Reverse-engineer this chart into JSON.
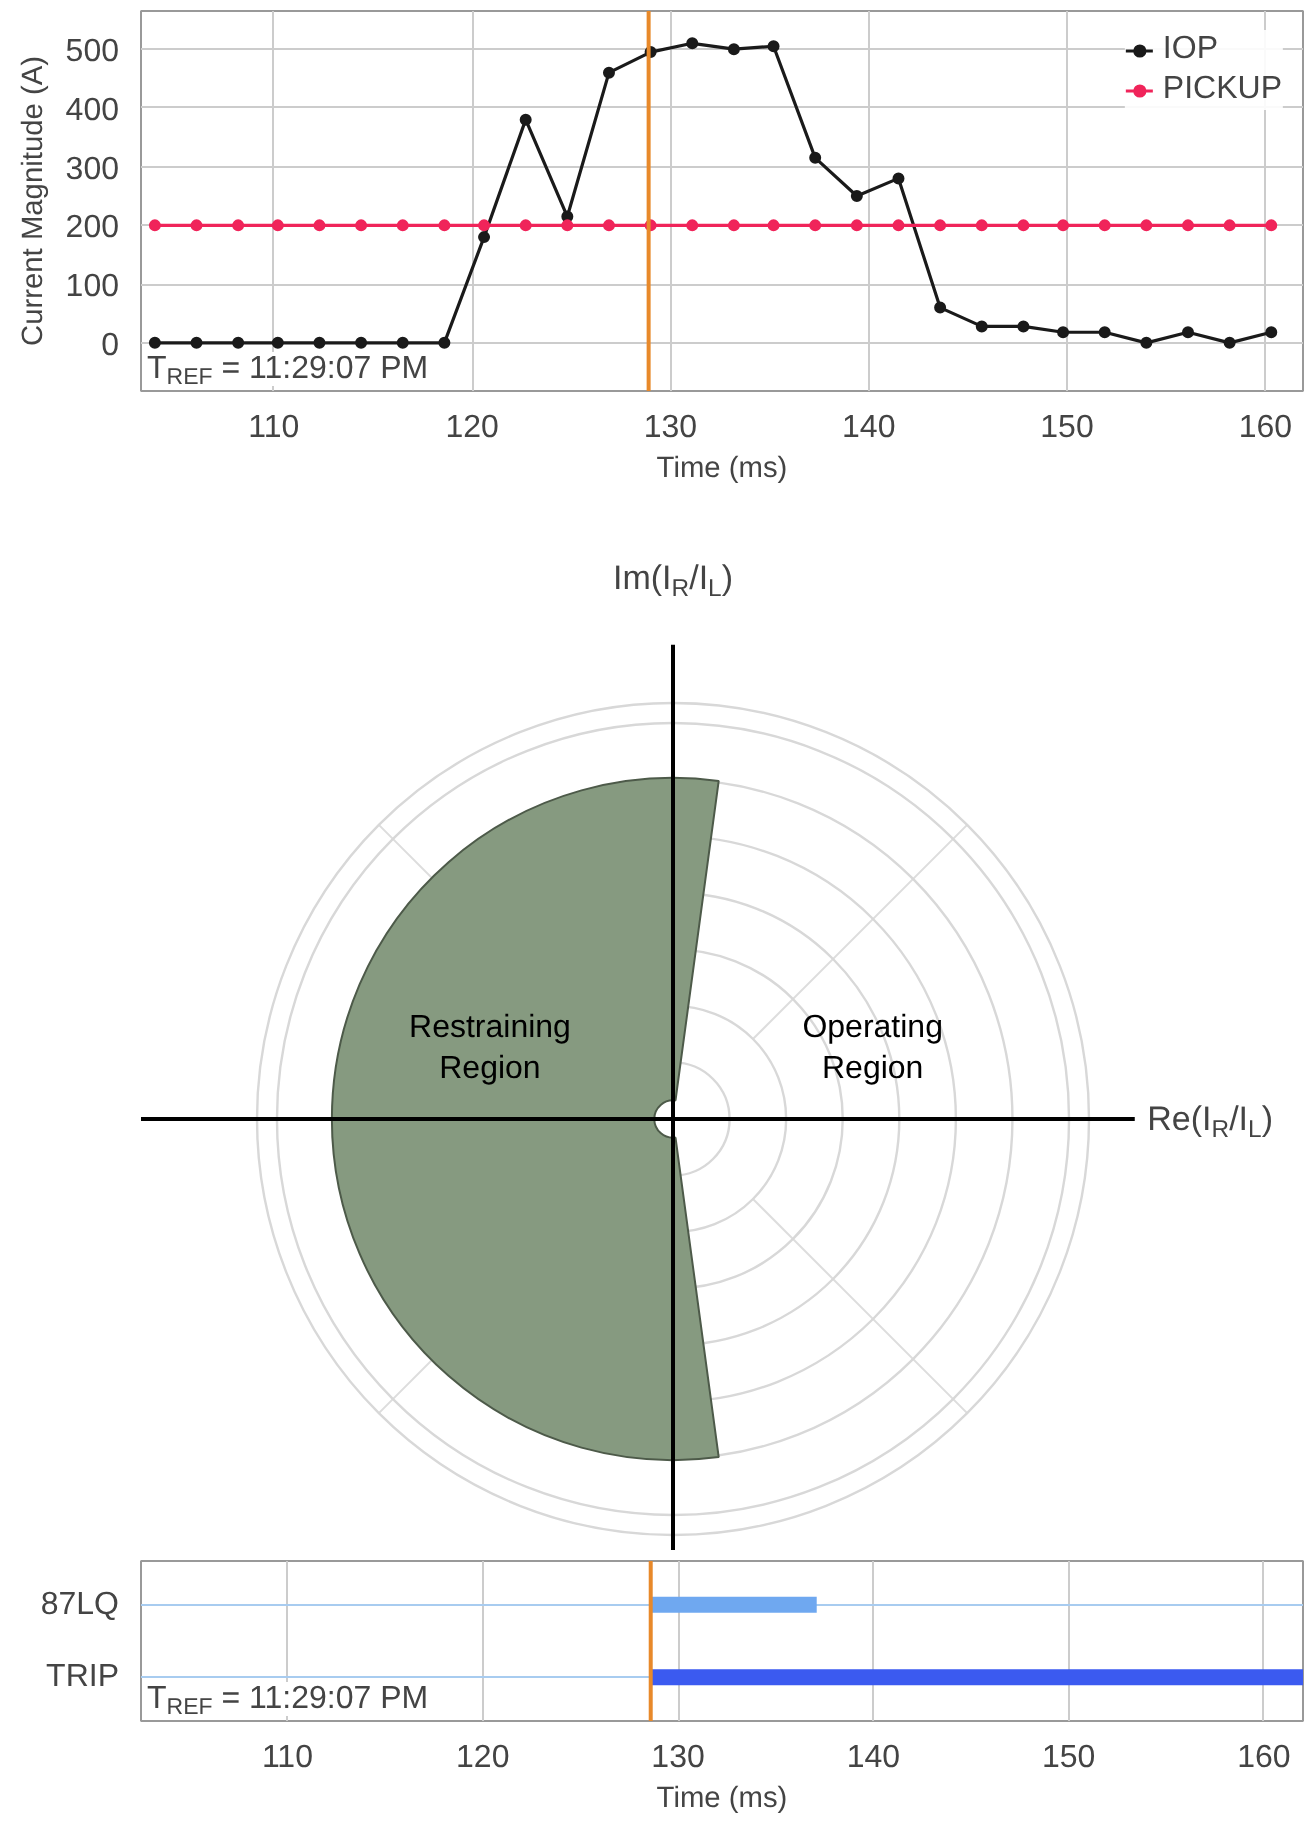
{
  "chart_data": [
    {
      "type": "line",
      "xlabel": "Time (ms)",
      "ylabel": "Current Magnitude (A)",
      "x": [
        104,
        106.1,
        108.2,
        110.2,
        112.3,
        114.4,
        116.5,
        118.6,
        120.6,
        122.7,
        124.8,
        126.9,
        129.0,
        131.1,
        133.2,
        135.2,
        137.3,
        139.4,
        141.5,
        143.6,
        145.7,
        147.8,
        149.8,
        151.9,
        154.0,
        156.1,
        158.2,
        160.3
      ],
      "series": [
        {
          "name": "IOP",
          "color": "#1a1a1a",
          "values": [
            0,
            0,
            0,
            0,
            0,
            0,
            0,
            0,
            180,
            380,
            215,
            460,
            495,
            510,
            500,
            505,
            315,
            250,
            280,
            60,
            28,
            28,
            18,
            18,
            0,
            18,
            0,
            18
          ]
        },
        {
          "name": "PICKUP",
          "color": "#f0245a",
          "values": [
            200,
            200,
            200,
            200,
            200,
            200,
            200,
            200,
            200,
            200,
            200,
            200,
            200,
            200,
            200,
            200,
            200,
            200,
            200,
            200,
            200,
            200,
            200,
            200,
            200,
            200,
            200,
            200
          ]
        }
      ],
      "xlim": [
        103.3,
        161.9
      ],
      "xticks": [
        110,
        120,
        130,
        140,
        150,
        160
      ],
      "ylim": [
        -82,
        565
      ],
      "yticks": [
        0,
        100,
        200,
        300,
        400,
        500
      ],
      "grid": true,
      "legend": "top right",
      "marker": "circle",
      "ref_lines": [
        {
          "axis": "x",
          "value": 128.9,
          "color": "#e8892a"
        }
      ],
      "annotations": [
        "T$_{REF}$ = 11:29:07 PM"
      ]
    },
    {
      "type": "other",
      "xlabel": "Re(I$_{R}$/I$_{L}$)",
      "ylabel": "Im(I$_{R}$/I$_{L}$)",
      "annotations": [
        "Restraining\nRegion",
        "Operating\nRegion"
      ]
    },
    {
      "type": "bar",
      "orientation": "horizontal",
      "categories": [
        "87LQ",
        "TRIP"
      ],
      "base": [
        128.6,
        128.6
      ],
      "values": [
        8.5,
        33.4
      ],
      "colors": [
        "#6fa8f0",
        "#3b5af0"
      ],
      "xlim": [
        102.5,
        162
      ],
      "xticks": [
        110,
        120,
        130,
        140,
        150,
        160
      ],
      "xlabel": "Time (ms)",
      "grid": true,
      "ref_lines": [
        {
          "axis": "x",
          "value": 128.6,
          "color": "#e8892a"
        }
      ],
      "annotations": [
        "T$_{REF}$ = 11:29:07 PM"
      ]
    }
  ]
}
